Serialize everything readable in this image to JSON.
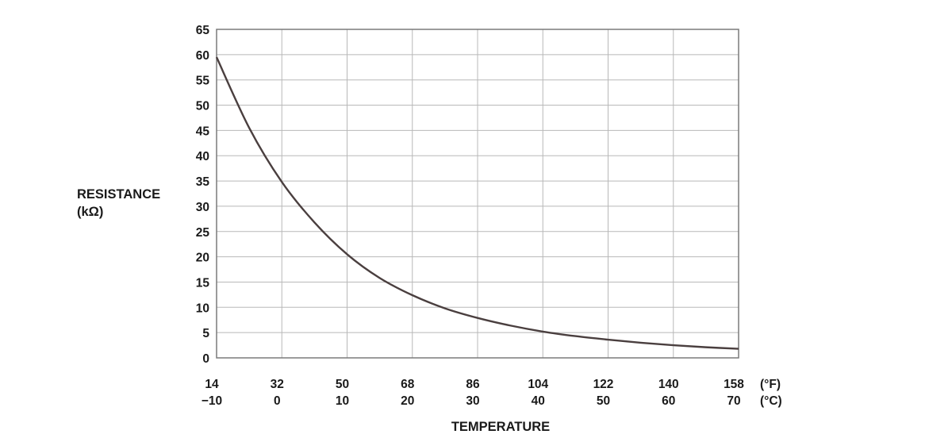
{
  "chart_data": {
    "type": "line",
    "title": "",
    "ylabel_line1": "RESISTANCE",
    "ylabel_line2": "(kΩ)",
    "xlabel": "TEMPERATURE",
    "xunit_f": "(°F)",
    "xunit_c": "(°C)",
    "ylim": [
      0,
      65
    ],
    "xlim_c": [
      -10,
      70
    ],
    "grid": true,
    "y_ticks": [
      0,
      5,
      10,
      15,
      20,
      25,
      30,
      35,
      40,
      45,
      50,
      55,
      60,
      65
    ],
    "x_ticks_c": [
      "−10",
      "0",
      "10",
      "20",
      "30",
      "40",
      "50",
      "60",
      "70"
    ],
    "x_ticks_f": [
      "14",
      "32",
      "50",
      "68",
      "86",
      "104",
      "122",
      "140",
      "158"
    ],
    "series": [
      {
        "x": [
          -10,
          -5,
          0,
          5,
          10,
          15,
          20,
          25,
          30,
          35,
          40,
          45,
          50,
          55,
          60,
          65,
          70
        ],
        "y": [
          59.5,
          45.5,
          34.8,
          26.8,
          20.5,
          15.8,
          12.4,
          9.8,
          7.9,
          6.4,
          5.2,
          4.3,
          3.6,
          3.0,
          2.5,
          2.1,
          1.8
        ],
        "color": "#4a3f3f"
      }
    ]
  }
}
